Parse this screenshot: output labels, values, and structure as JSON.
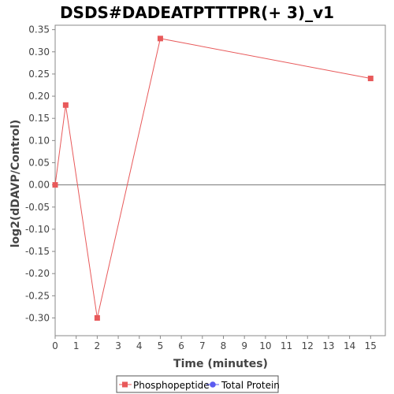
{
  "chart_data": {
    "type": "line",
    "title": "DSDS#DADEATPTTTPR(+ 3)_v1",
    "xlabel": "Time (minutes)",
    "ylabel": "log2(dDAVP/Control)",
    "xlim": [
      0,
      15.7
    ],
    "ylim": [
      -0.34,
      0.36
    ],
    "x_ticks": [
      0,
      1,
      2,
      3,
      4,
      5,
      6,
      7,
      8,
      9,
      10,
      11,
      12,
      13,
      14,
      15
    ],
    "y_ticks": [
      -0.3,
      -0.25,
      -0.2,
      -0.15,
      -0.1,
      -0.05,
      0.0,
      0.05,
      0.1,
      0.15,
      0.2,
      0.25,
      0.3,
      0.35
    ],
    "zero_line": true,
    "grid": false,
    "legend_position": "bottom",
    "series": [
      {
        "name": "Phosphopeptide",
        "color": "#e8595a",
        "marker": "square",
        "x": [
          0,
          0.5,
          2,
          5,
          15
        ],
        "y": [
          0.0,
          0.18,
          -0.3,
          0.33,
          0.24
        ]
      },
      {
        "name": "Total Protein",
        "color": "#5b5bf0",
        "marker": "circle",
        "x": [],
        "y": []
      }
    ]
  }
}
